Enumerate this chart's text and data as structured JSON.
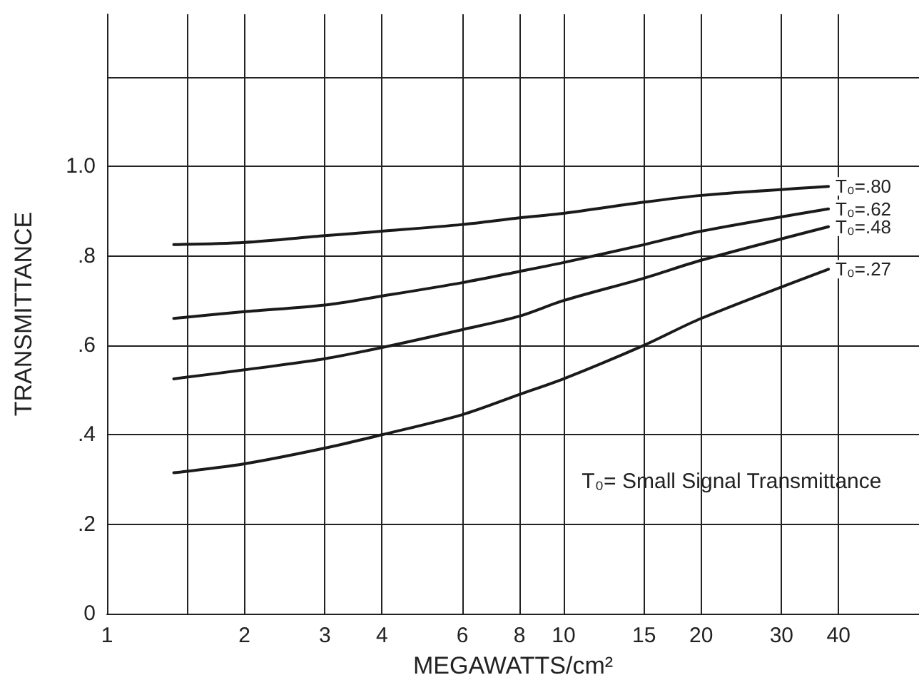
{
  "chart_data": {
    "type": "line",
    "xlabel": "MEGAWATTS/cm²",
    "ylabel": "TRANSMITTANCE",
    "annotations": [
      "T₀= Small Signal Transmittance"
    ],
    "log": "x",
    "xlim": [
      1,
      60
    ],
    "xticks": [
      1,
      {
        "value": 1.5,
        "label": null
      },
      2,
      3,
      4,
      6,
      8,
      10,
      15,
      20,
      30,
      40
    ],
    "ylim": [
      0,
      1.34
    ],
    "yticks": [
      0,
      {
        "value": 0.2,
        "label": ".2"
      },
      {
        "value": 0.4,
        "label": ".4"
      },
      {
        "value": 0.6,
        "label": ".6"
      },
      {
        "value": 0.8,
        "label": ".8"
      },
      {
        "value": 1.0,
        "label": "1.0"
      },
      {
        "value": 1.2,
        "label": null
      }
    ],
    "grid": true,
    "marker": "none",
    "line_style": "solid",
    "legend": false,
    "x": [
      1.4,
      2,
      3,
      4,
      6,
      8,
      10,
      15,
      20,
      38
    ],
    "series": [
      {
        "name": "T₀=.80",
        "color": "#1a1a1a",
        "values": [
          0.825,
          0.83,
          0.845,
          0.855,
          0.87,
          0.885,
          0.895,
          0.92,
          0.935,
          0.955
        ]
      },
      {
        "name": "T₀=.62",
        "color": "#1a1a1a",
        "values": [
          0.66,
          0.675,
          0.69,
          0.71,
          0.74,
          0.765,
          0.785,
          0.825,
          0.855,
          0.905
        ]
      },
      {
        "name": "T₀=.48",
        "color": "#1a1a1a",
        "values": [
          0.525,
          0.545,
          0.57,
          0.595,
          0.635,
          0.665,
          0.7,
          0.75,
          0.79,
          0.865
        ]
      },
      {
        "name": "T₀=.27",
        "color": "#1a1a1a",
        "values": [
          0.315,
          0.335,
          0.37,
          0.4,
          0.445,
          0.49,
          0.525,
          0.6,
          0.66,
          0.77
        ]
      }
    ]
  }
}
